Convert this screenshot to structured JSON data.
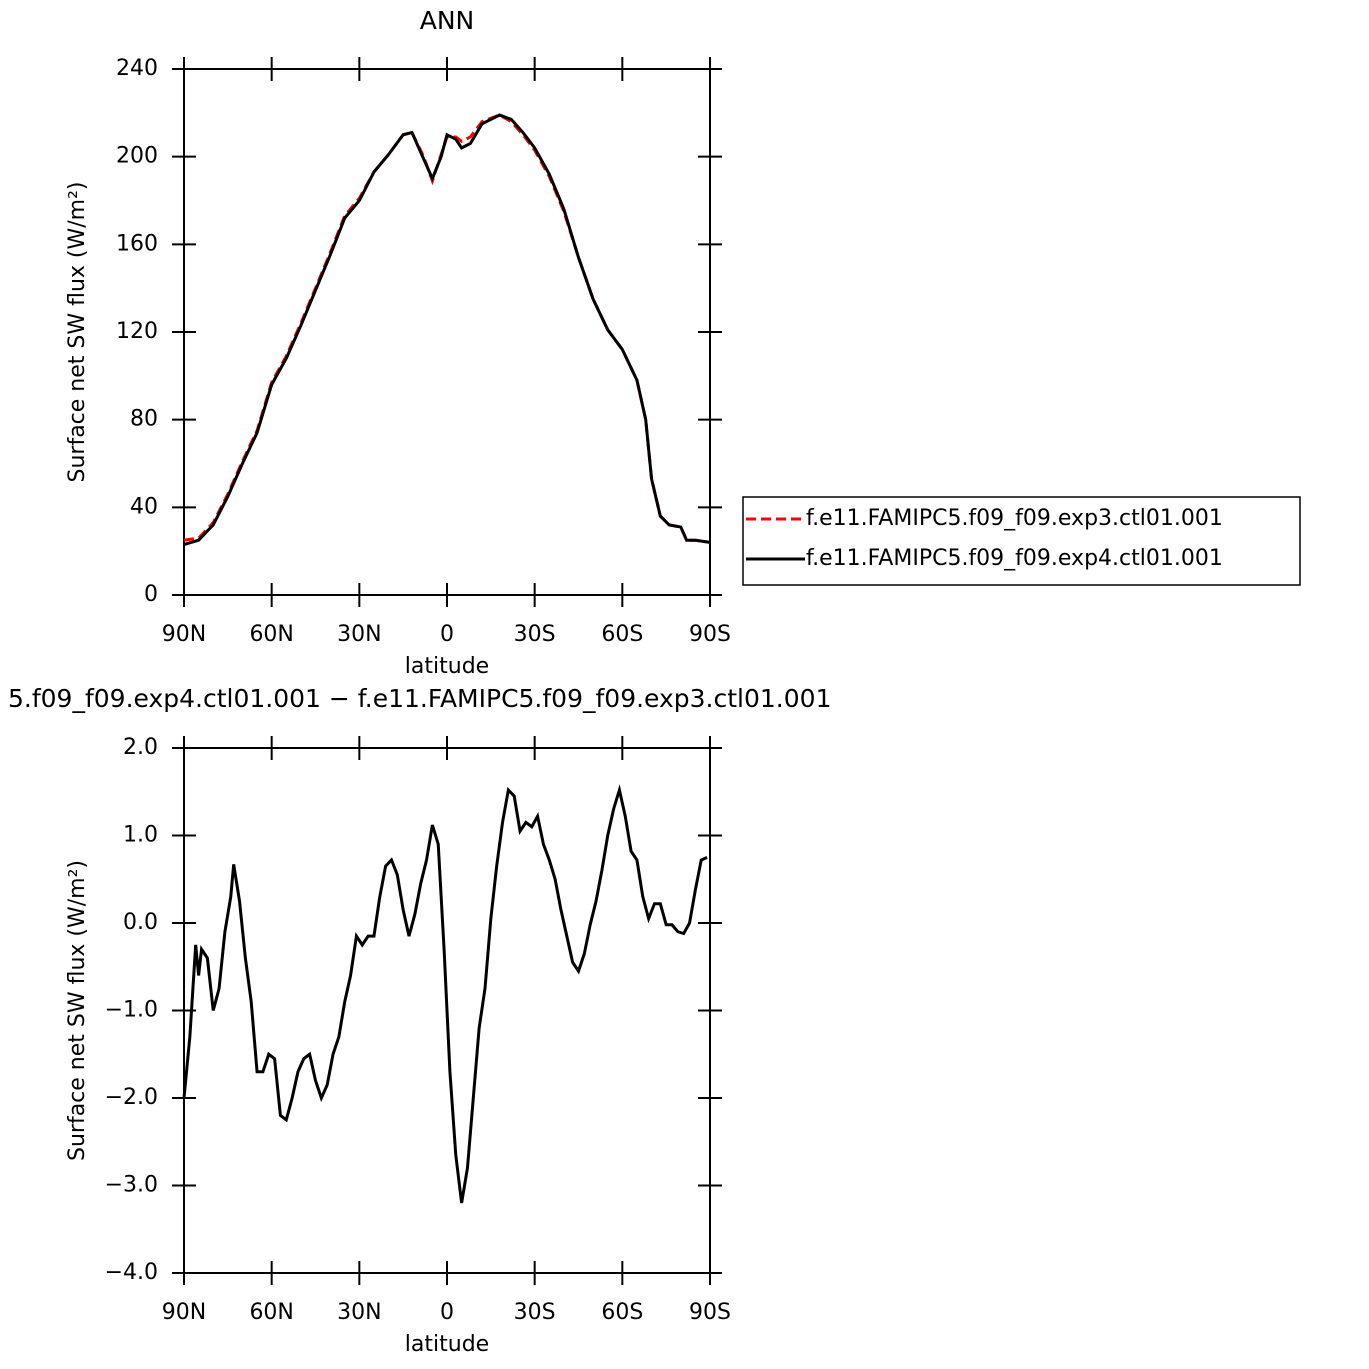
{
  "chart_data": [
    {
      "type": "line",
      "title": "ANN",
      "xlabel": "latitude",
      "ylabel": "Surface net SW flux (W/m²)",
      "x": [
        90,
        85,
        80,
        75,
        70,
        65,
        60,
        55,
        50,
        45,
        40,
        35,
        30,
        25,
        20,
        15,
        12,
        8,
        5,
        2,
        0,
        -3,
        -5,
        -8,
        -12,
        -18,
        -22,
        -26,
        -30,
        -35,
        -40,
        -45,
        -50,
        -55,
        -60,
        -65,
        -68,
        -70,
        -73,
        -76,
        -80,
        -82,
        -85,
        -90
      ],
      "series": [
        {
          "name": "f.e11.FAMIPC5.f09_f09.exp3.ctl01.001",
          "color": "#ff0000",
          "dash": true,
          "values": [
            25,
            26,
            33,
            46,
            61,
            75,
            97,
            109,
            124,
            140,
            156,
            173,
            181,
            193,
            201,
            210,
            211,
            200,
            189,
            201,
            209,
            209,
            207,
            209,
            216,
            219,
            216,
            210,
            203,
            191,
            175,
            154,
            135,
            121,
            112,
            98,
            80,
            53,
            36,
            32,
            31,
            25,
            25,
            24
          ]
        },
        {
          "name": "f.e11.FAMIPC5.f09_f09.exp4.ctl01.001",
          "color": "#000000",
          "dash": false,
          "values": [
            23,
            25,
            32,
            45,
            60,
            74,
            96,
            108,
            123,
            139,
            155,
            172,
            180,
            193,
            201,
            210,
            211,
            199,
            190,
            200,
            210,
            208,
            204,
            206,
            215,
            219,
            217,
            211,
            204,
            192,
            176,
            154,
            135,
            121,
            112,
            98,
            80,
            53,
            36,
            32,
            31,
            25,
            25,
            24
          ]
        }
      ],
      "xlim": [
        90,
        -90
      ],
      "xticks": [
        {
          "value": 90,
          "label": "90N"
        },
        {
          "value": 60,
          "label": "60N"
        },
        {
          "value": 30,
          "label": "30N"
        },
        0,
        {
          "value": -30,
          "label": "30S"
        },
        {
          "value": -60,
          "label": "60S"
        },
        {
          "value": -90,
          "label": "90S"
        }
      ],
      "ylim": [
        0,
        240
      ],
      "yticks": [
        0,
        40,
        80,
        120,
        160,
        200,
        240
      ],
      "legend": "right"
    },
    {
      "type": "line",
      "title": "5.f09_f09.exp4.ctl01.001 − f.e11.FAMIPC5.f09_f09.exp3.ctl01.001",
      "xlabel": "latitude",
      "ylabel": "Surface net SW flux (W/m²)",
      "x": [
        90,
        88,
        86,
        85,
        84,
        82,
        80,
        78,
        76,
        74,
        73,
        71,
        69,
        67,
        65,
        63,
        61,
        59,
        57,
        55,
        53,
        51,
        49,
        47,
        45,
        43,
        41,
        39,
        37,
        35,
        33,
        31,
        29,
        27,
        25,
        23,
        21,
        19,
        17,
        15,
        13,
        11,
        9,
        7,
        5,
        3,
        1,
        -1,
        -3,
        -5,
        -7,
        -9,
        -11,
        -13,
        -15,
        -17,
        -19,
        -21,
        -23,
        -25,
        -27,
        -29,
        -31,
        -33,
        -35,
        -37,
        -39,
        -41,
        -43,
        -45,
        -47,
        -49,
        -51,
        -53,
        -55,
        -57,
        -59,
        -61,
        -63,
        -65,
        -67,
        -69,
        -71,
        -73,
        -75,
        -77,
        -79,
        -81,
        -83,
        -85,
        -87,
        -89
      ],
      "color": "#000000",
      "values": [
        -2.0,
        -1.3,
        -0.25,
        -0.6,
        -0.3,
        -0.4,
        -1.0,
        -0.75,
        -0.1,
        0.3,
        0.67,
        0.25,
        -0.4,
        -0.9,
        -1.7,
        -1.7,
        -1.5,
        -1.55,
        -2.2,
        -2.25,
        -2.0,
        -1.7,
        -1.55,
        -1.5,
        -1.8,
        -2.0,
        -1.85,
        -1.5,
        -1.3,
        -0.9,
        -0.6,
        -0.15,
        -0.25,
        -0.15,
        -0.15,
        0.3,
        0.65,
        0.72,
        0.55,
        0.15,
        -0.15,
        0.1,
        0.45,
        0.72,
        1.12,
        0.9,
        -0.3,
        -1.7,
        -2.65,
        -3.2,
        -2.8,
        -2.0,
        -1.2,
        -0.75,
        0.05,
        0.65,
        1.15,
        1.52,
        1.45,
        1.05,
        1.15,
        1.1,
        1.22,
        0.9,
        0.72,
        0.5,
        0.15,
        -0.15,
        -0.45,
        -0.55,
        -0.35,
        -0.02,
        0.25,
        0.6,
        1.0,
        1.3,
        1.52,
        1.22,
        0.82,
        0.72,
        0.3,
        0.05,
        0.22,
        0.22,
        -0.02,
        -0.02,
        -0.1,
        -0.12,
        0.0,
        0.38,
        0.72,
        0.75
      ],
      "xlim": [
        90,
        -90
      ],
      "xticks": [
        {
          "value": 90,
          "label": "90N"
        },
        {
          "value": 60,
          "label": "60N"
        },
        {
          "value": 30,
          "label": "30N"
        },
        0,
        {
          "value": -30,
          "label": "30S"
        },
        {
          "value": -60,
          "label": "60S"
        },
        {
          "value": -90,
          "label": "90S"
        }
      ],
      "ylim": [
        -4,
        2
      ],
      "yticks": [
        {
          "value": -4,
          "label": "−4.0"
        },
        {
          "value": -3,
          "label": "−3.0"
        },
        {
          "value": -2,
          "label": "−2.0"
        },
        {
          "value": -1,
          "label": "−1.0"
        },
        {
          "value": 0,
          "label": "0.0"
        },
        {
          "value": 1,
          "label": "1.0"
        },
        {
          "value": 2,
          "label": "2.0"
        }
      ]
    }
  ]
}
